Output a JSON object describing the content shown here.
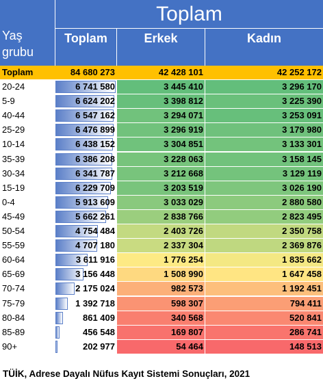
{
  "header": {
    "group_title": "Toplam",
    "row_header": "Yaş grubu",
    "col_total": "Toplam",
    "col_male": "Erkek",
    "col_female": "Kadın"
  },
  "total_row": {
    "label": "Toplam",
    "total": "84 680 273",
    "male": "42 428 101",
    "female": "42 252 172"
  },
  "footer": "TÜİK, Adrese Dayalı Nüfus Kayıt Sistemi Sonuçları, 2021",
  "colors": {
    "header_blue": "#4472c4",
    "total_row": "#ffc000",
    "high": "#63be7b",
    "mid": "#ffeb84",
    "low": "#f8696b",
    "bar": "#5b7fc8"
  },
  "chart_data": {
    "type": "table",
    "columns": [
      "Yaş grubu",
      "Toplam",
      "Erkek",
      "Kadın"
    ],
    "rows": [
      {
        "age": "20-24",
        "total": 6741580,
        "total_text": "6 741 580",
        "male": 3445410,
        "male_text": "3 445 410",
        "female": 3296170,
        "female_text": "3 296 170"
      },
      {
        "age": "5-9",
        "total": 6624202,
        "total_text": "6 624 202",
        "male": 3398812,
        "male_text": "3 398 812",
        "female": 3225390,
        "female_text": "3 225 390"
      },
      {
        "age": "40-44",
        "total": 6547162,
        "total_text": "6 547 162",
        "male": 3294071,
        "male_text": "3 294 071",
        "female": 3253091,
        "female_text": "3 253 091"
      },
      {
        "age": "25-29",
        "total": 6476899,
        "total_text": "6 476 899",
        "male": 3296919,
        "male_text": "3 296 919",
        "female": 3179980,
        "female_text": "3 179 980"
      },
      {
        "age": "10-14",
        "total": 6438152,
        "total_text": "6 438 152",
        "male": 3304851,
        "male_text": "3 304 851",
        "female": 3133301,
        "female_text": "3 133 301"
      },
      {
        "age": "35-39",
        "total": 6386208,
        "total_text": "6 386 208",
        "male": 3228063,
        "male_text": "3 228 063",
        "female": 3158145,
        "female_text": "3 158 145"
      },
      {
        "age": "30-34",
        "total": 6341787,
        "total_text": "6 341 787",
        "male": 3212668,
        "male_text": "3 212 668",
        "female": 3129119,
        "female_text": "3 129 119"
      },
      {
        "age": "15-19",
        "total": 6229709,
        "total_text": "6 229 709",
        "male": 3203519,
        "male_text": "3 203 519",
        "female": 3026190,
        "female_text": "3 026 190"
      },
      {
        "age": "0-4",
        "total": 5913609,
        "total_text": "5 913 609",
        "male": 3033029,
        "male_text": "3 033 029",
        "female": 2880580,
        "female_text": "2 880 580"
      },
      {
        "age": "45-49",
        "total": 5662261,
        "total_text": "5 662 261",
        "male": 2838766,
        "male_text": "2 838 766",
        "female": 2823495,
        "female_text": "2 823 495"
      },
      {
        "age": "50-54",
        "total": 4754484,
        "total_text": "4 754 484",
        "male": 2403726,
        "male_text": "2 403 726",
        "female": 2350758,
        "female_text": "2 350 758"
      },
      {
        "age": "55-59",
        "total": 4707180,
        "total_text": "4 707 180",
        "male": 2337304,
        "male_text": "2 337 304",
        "female": 2369876,
        "female_text": "2 369 876"
      },
      {
        "age": "60-64",
        "total": 3611916,
        "total_text": "3 611 916",
        "male": 1776254,
        "male_text": "1 776 254",
        "female": 1835662,
        "female_text": "1 835 662"
      },
      {
        "age": "65-69",
        "total": 3156448,
        "total_text": "3 156 448",
        "male": 1508990,
        "male_text": "1 508 990",
        "female": 1647458,
        "female_text": "1 647 458"
      },
      {
        "age": "70-74",
        "total": 2175024,
        "total_text": "2 175 024",
        "male": 982573,
        "male_text": "982 573",
        "female": 1192451,
        "female_text": "1 192 451"
      },
      {
        "age": "75-79",
        "total": 1392718,
        "total_text": "1 392 718",
        "male": 598307,
        "male_text": "598 307",
        "female": 794411,
        "female_text": "794 411"
      },
      {
        "age": "80-84",
        "total": 861409,
        "total_text": "861 409",
        "male": 340568,
        "male_text": "340 568",
        "female": 520841,
        "female_text": "520 841"
      },
      {
        "age": "85-89",
        "total": 456548,
        "total_text": "456 548",
        "male": 169807,
        "male_text": "169 807",
        "female": 286741,
        "female_text": "286 741"
      },
      {
        "age": "90+",
        "total": 202977,
        "total_text": "202 977",
        "male": 54464,
        "male_text": "54 464",
        "female": 148513,
        "female_text": "148 513"
      }
    ]
  }
}
